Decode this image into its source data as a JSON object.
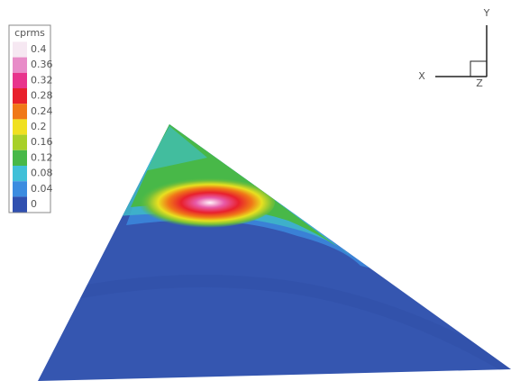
{
  "chart_data": {
    "type": "contour",
    "legend": {
      "title": "cprms",
      "ticks": [
        0.4,
        0.36,
        0.32,
        0.28,
        0.24,
        0.2,
        0.16,
        0.12,
        0.08,
        0.04,
        0
      ],
      "lim": [
        0,
        0.4
      ],
      "colors": [
        "#f6e8f2",
        "#e88cc8",
        "#e8348c",
        "#e8202c",
        "#f07818",
        "#f0e020",
        "#a8d028",
        "#48b848",
        "#40c0d8",
        "#3c8ce0",
        "#3050b0"
      ]
    },
    "axes": {
      "x": "X",
      "y": "Y",
      "z": "Z"
    }
  }
}
